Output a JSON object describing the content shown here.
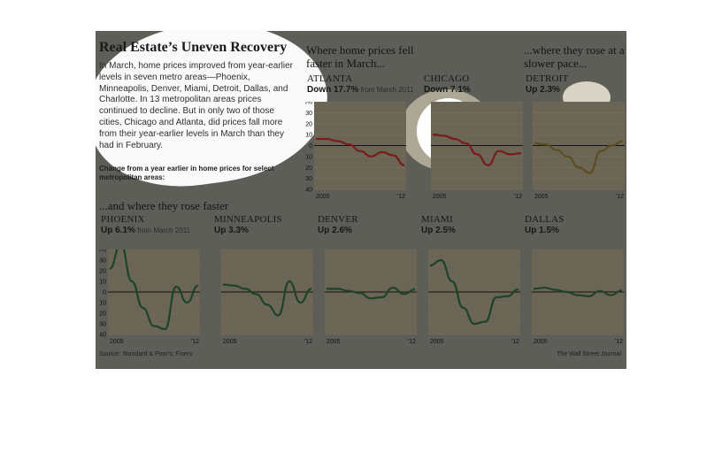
{
  "title": "Real Estate’s Uneven Recovery",
  "intro": "In March, home prices improved from year-earlier levels in seven metro areas—Phoenix, Minneapolis, Denver, Miami, Detroit, Dallas, and Charlotte. In 13 metropolitan areas prices continued to decline. But in only two of those cities, Chicago and Atlanta, did prices fall more from their year-earlier levels in March than they had in February.",
  "change_note": "Change from a year earlier in home prices for select metropolitan areas:",
  "sections": {
    "faster_fall": "Where home prices fell faster in March...",
    "slower_rise": "...where they rose at a slower pace...",
    "faster_rise": "...and where they rose faster"
  },
  "source": "Source: Standard & Poor's; Fiserv",
  "credit": "The Wall Street Journal",
  "colors": {
    "background": "#5e5e58",
    "plot_background": "#6b6556",
    "decline": "#7a1a1a",
    "slower": "#5b4d1e",
    "faster": "#1d4426"
  },
  "chart_data": [
    {
      "type": "line",
      "title": "ATLANTA",
      "status": "Down 17.7%",
      "status_note": "from March 2011",
      "x": [
        "2004",
        "2005",
        "2006",
        "2007",
        "2008",
        "2009",
        "2010",
        "2011",
        "2012"
      ],
      "series": [
        {
          "values": [
            6,
            6,
            4,
            1,
            -5,
            -10,
            -6,
            -9,
            -18
          ]
        }
      ],
      "ylim": [
        -40,
        40
      ],
      "yticks": [
        "40%",
        "30",
        "20",
        "10",
        "0",
        "-10",
        "-20",
        "-30",
        "-40"
      ],
      "xtick_labels": [
        "2005",
        "'12"
      ],
      "grid": true
    },
    {
      "type": "line",
      "title": "CHICAGO",
      "status": "Down 7.1%",
      "x": [
        "2004",
        "2005",
        "2006",
        "2007",
        "2008",
        "2009",
        "2010",
        "2011",
        "2012"
      ],
      "series": [
        {
          "values": [
            10,
            9,
            6,
            2,
            -8,
            -18,
            -5,
            -8,
            -7
          ]
        }
      ],
      "ylim": [
        -40,
        40
      ],
      "xtick_labels": [
        "2005",
        "'12"
      ],
      "grid": true
    },
    {
      "type": "line",
      "title": "DETROIT",
      "status": "Up 2.3%",
      "x": [
        "2004",
        "2005",
        "2006",
        "2007",
        "2008",
        "2009",
        "2010",
        "2011",
        "2012"
      ],
      "series": [
        {
          "values": [
            2,
            1,
            -4,
            -10,
            -20,
            -25,
            -5,
            0,
            4
          ]
        }
      ],
      "ylim": [
        -40,
        40
      ],
      "xtick_labels": [
        "2005",
        "'12"
      ],
      "grid": true
    },
    {
      "type": "line",
      "title": "PHOENIX",
      "status": "Up 6.1%",
      "status_note": "from March 2011",
      "x": [
        "2004",
        "2005",
        "2006",
        "2007",
        "2008",
        "2009",
        "2010",
        "2011",
        "2012"
      ],
      "series": [
        {
          "values": [
            22,
            45,
            10,
            -15,
            -32,
            -35,
            5,
            -10,
            6
          ]
        }
      ],
      "ylim": [
        -40,
        40
      ],
      "yticks": [
        "40%",
        "30",
        "20",
        "10",
        "0",
        "-10",
        "-20",
        "-30",
        "-40"
      ],
      "xtick_labels": [
        "2005",
        "'12"
      ],
      "grid": true
    },
    {
      "type": "line",
      "title": "MINNEAPOLIS",
      "status": "Up 3.3%",
      "x": [
        "2004",
        "2005",
        "2006",
        "2007",
        "2008",
        "2009",
        "2010",
        "2011",
        "2012"
      ],
      "series": [
        {
          "values": [
            7,
            6,
            3,
            -2,
            -12,
            -22,
            10,
            -10,
            3
          ]
        }
      ],
      "ylim": [
        -40,
        40
      ],
      "xtick_labels": [
        "2005",
        "'12"
      ],
      "grid": true
    },
    {
      "type": "line",
      "title": "DENVER",
      "status": "Up 2.6%",
      "x": [
        "2004",
        "2005",
        "2006",
        "2007",
        "2008",
        "2009",
        "2010",
        "2011",
        "2012"
      ],
      "series": [
        {
          "values": [
            3,
            3,
            1,
            -1,
            -6,
            -5,
            4,
            -2,
            2.6
          ]
        }
      ],
      "ylim": [
        -40,
        40
      ],
      "xtick_labels": [
        "2005",
        "'12"
      ],
      "grid": true
    },
    {
      "type": "line",
      "title": "MIAMI",
      "status": "Up 2.5%",
      "x": [
        "2004",
        "2005",
        "2006",
        "2007",
        "2008",
        "2009",
        "2010",
        "2011",
        "2012"
      ],
      "series": [
        {
          "values": [
            25,
            30,
            10,
            -15,
            -30,
            -28,
            -5,
            -4,
            2.5
          ]
        }
      ],
      "ylim": [
        -40,
        40
      ],
      "xtick_labels": [
        "2005",
        "'12"
      ],
      "grid": true
    },
    {
      "type": "line",
      "title": "DALLAS",
      "status": "Up 1.5%",
      "x": [
        "2004",
        "2005",
        "2006",
        "2007",
        "2008",
        "2009",
        "2010",
        "2011",
        "2012"
      ],
      "series": [
        {
          "values": [
            3,
            4,
            2,
            0,
            -3,
            -4,
            1,
            -3,
            1.5
          ]
        }
      ],
      "ylim": [
        -40,
        40
      ],
      "xtick_labels": [
        "2005",
        "'12"
      ],
      "grid": true
    }
  ]
}
